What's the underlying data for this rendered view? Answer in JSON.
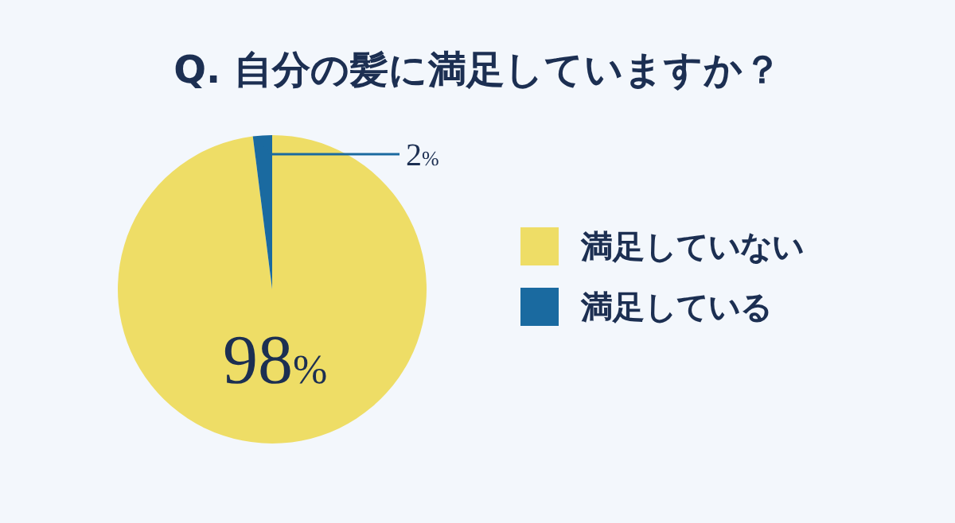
{
  "chart_data": {
    "type": "pie",
    "title": "Q. 自分の髪に満足していますか？",
    "categories": [
      "満足していない",
      "満足している"
    ],
    "values": [
      98,
      2
    ],
    "colors": [
      "#eedd66",
      "#1a6aa0"
    ],
    "value_labels": [
      "98%",
      "2%"
    ],
    "legend": "right"
  }
}
